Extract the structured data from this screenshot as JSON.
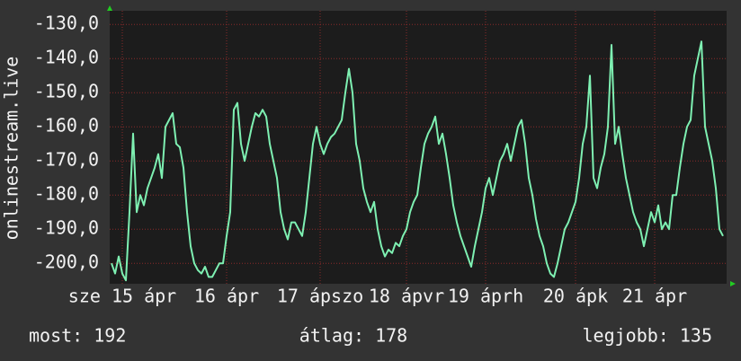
{
  "chart_data": {
    "type": "line",
    "y_label": "onlinestream.live",
    "x": [
      0,
      1,
      2,
      3,
      4,
      5,
      6,
      7,
      8,
      9,
      10,
      11,
      12,
      13,
      14,
      15,
      16,
      17,
      18,
      19,
      20,
      21,
      22,
      23,
      24,
      25,
      26,
      27,
      28,
      29,
      30,
      31,
      32,
      33,
      34,
      35,
      36,
      37,
      38,
      39,
      40,
      41,
      42,
      43,
      44,
      45,
      46,
      47,
      48,
      49,
      50,
      51,
      52,
      53,
      54,
      55,
      56,
      57,
      58,
      59,
      60,
      61,
      62,
      63,
      64,
      65,
      66,
      67,
      68,
      69,
      70,
      71,
      72,
      73,
      74,
      75,
      76,
      77,
      78,
      79,
      80,
      81,
      82,
      83,
      84,
      85,
      86,
      87,
      88,
      89,
      90,
      91,
      92,
      93,
      94,
      95,
      96,
      97,
      98,
      99,
      100,
      101,
      102,
      103,
      104,
      105,
      106,
      107,
      108,
      109,
      110,
      111,
      112,
      113,
      114,
      115,
      116,
      117,
      118,
      119,
      120,
      121,
      122,
      123,
      124,
      125,
      126,
      127,
      128,
      129,
      130,
      131,
      132,
      133,
      134,
      135,
      136,
      137,
      138,
      139,
      140,
      141,
      142,
      143,
      144,
      145,
      146,
      147,
      148,
      149,
      150,
      151,
      152,
      153,
      154,
      155,
      156,
      157,
      158,
      159,
      160,
      161,
      162,
      163,
      164,
      165,
      166,
      167,
      168,
      169,
      170
    ],
    "series": [
      {
        "color": "#7ef0b2",
        "values": [
          -200,
          -203,
          -198,
          -203,
          -205,
          -185,
          -162,
          -185,
          -180,
          -183,
          -178,
          -175,
          -172,
          -168,
          -175,
          -160,
          -158,
          -156,
          -165,
          -166,
          -172,
          -185,
          -195,
          -200,
          -202,
          -203,
          -201,
          -204,
          -204,
          -202,
          -200,
          -200,
          -192,
          -185,
          -155,
          -153,
          -165,
          -170,
          -165,
          -160,
          -156,
          -157,
          -155,
          -157,
          -165,
          -170,
          -175,
          -185,
          -190,
          -193,
          -188,
          -188,
          -190,
          -192,
          -185,
          -175,
          -165,
          -160,
          -165,
          -168,
          -165,
          -163,
          -162,
          -160,
          -158,
          -150,
          -143,
          -150,
          -165,
          -170,
          -178,
          -182,
          -185,
          -182,
          -190,
          -195,
          -198,
          -196,
          -197,
          -194,
          -195,
          -192,
          -190,
          -185,
          -182,
          -180,
          -172,
          -165,
          -162,
          -160,
          -157,
          -165,
          -162,
          -168,
          -175,
          -183,
          -188,
          -192,
          -195,
          -198,
          -201,
          -195,
          -190,
          -185,
          -178,
          -175,
          -180,
          -175,
          -170,
          -168,
          -165,
          -170,
          -165,
          -160,
          -158,
          -165,
          -175,
          -180,
          -187,
          -192,
          -195,
          -200,
          -203,
          -204,
          -200,
          -195,
          -190,
          -188,
          -185,
          -182,
          -175,
          -165,
          -160,
          -145,
          -175,
          -178,
          -172,
          -168,
          -160,
          -136,
          -165,
          -160,
          -168,
          -175,
          -180,
          -185,
          -188,
          -190,
          -195,
          -190,
          -185,
          -188,
          -183,
          -190,
          -188,
          -190,
          -180,
          -180,
          -172,
          -165,
          -160,
          -158,
          -145,
          -140,
          -135,
          -160,
          -165,
          -170,
          -178,
          -190,
          -192
        ]
      }
    ],
    "xlim": [
      -0.5,
      171
    ],
    "ylim": [
      -206,
      -126
    ],
    "xticks": [
      {
        "value": 3,
        "label": "sze 15 ápr"
      },
      {
        "value": 32,
        "label": "16 ápr"
      },
      {
        "value": 58,
        "label": "17 ápszo"
      },
      {
        "value": 82,
        "label": "18 ápvr"
      },
      {
        "value": 104,
        "label": "19 áprh"
      },
      {
        "value": 129,
        "label": "20 ápk"
      },
      {
        "value": 151,
        "label": "21 ápr"
      }
    ],
    "yticks": [
      {
        "value": -130,
        "label": "-130,0"
      },
      {
        "value": -140,
        "label": "-140,0"
      },
      {
        "value": -150,
        "label": "-150,0"
      },
      {
        "value": -160,
        "label": "-160,0"
      },
      {
        "value": -170,
        "label": "-170,0"
      },
      {
        "value": -180,
        "label": "-180,0"
      },
      {
        "value": -190,
        "label": "-190,0"
      },
      {
        "value": -200,
        "label": "-200,0"
      }
    ],
    "grid": true,
    "footer": [
      "most: 192",
      "átlag: 178",
      "legjobb: 135"
    ]
  }
}
